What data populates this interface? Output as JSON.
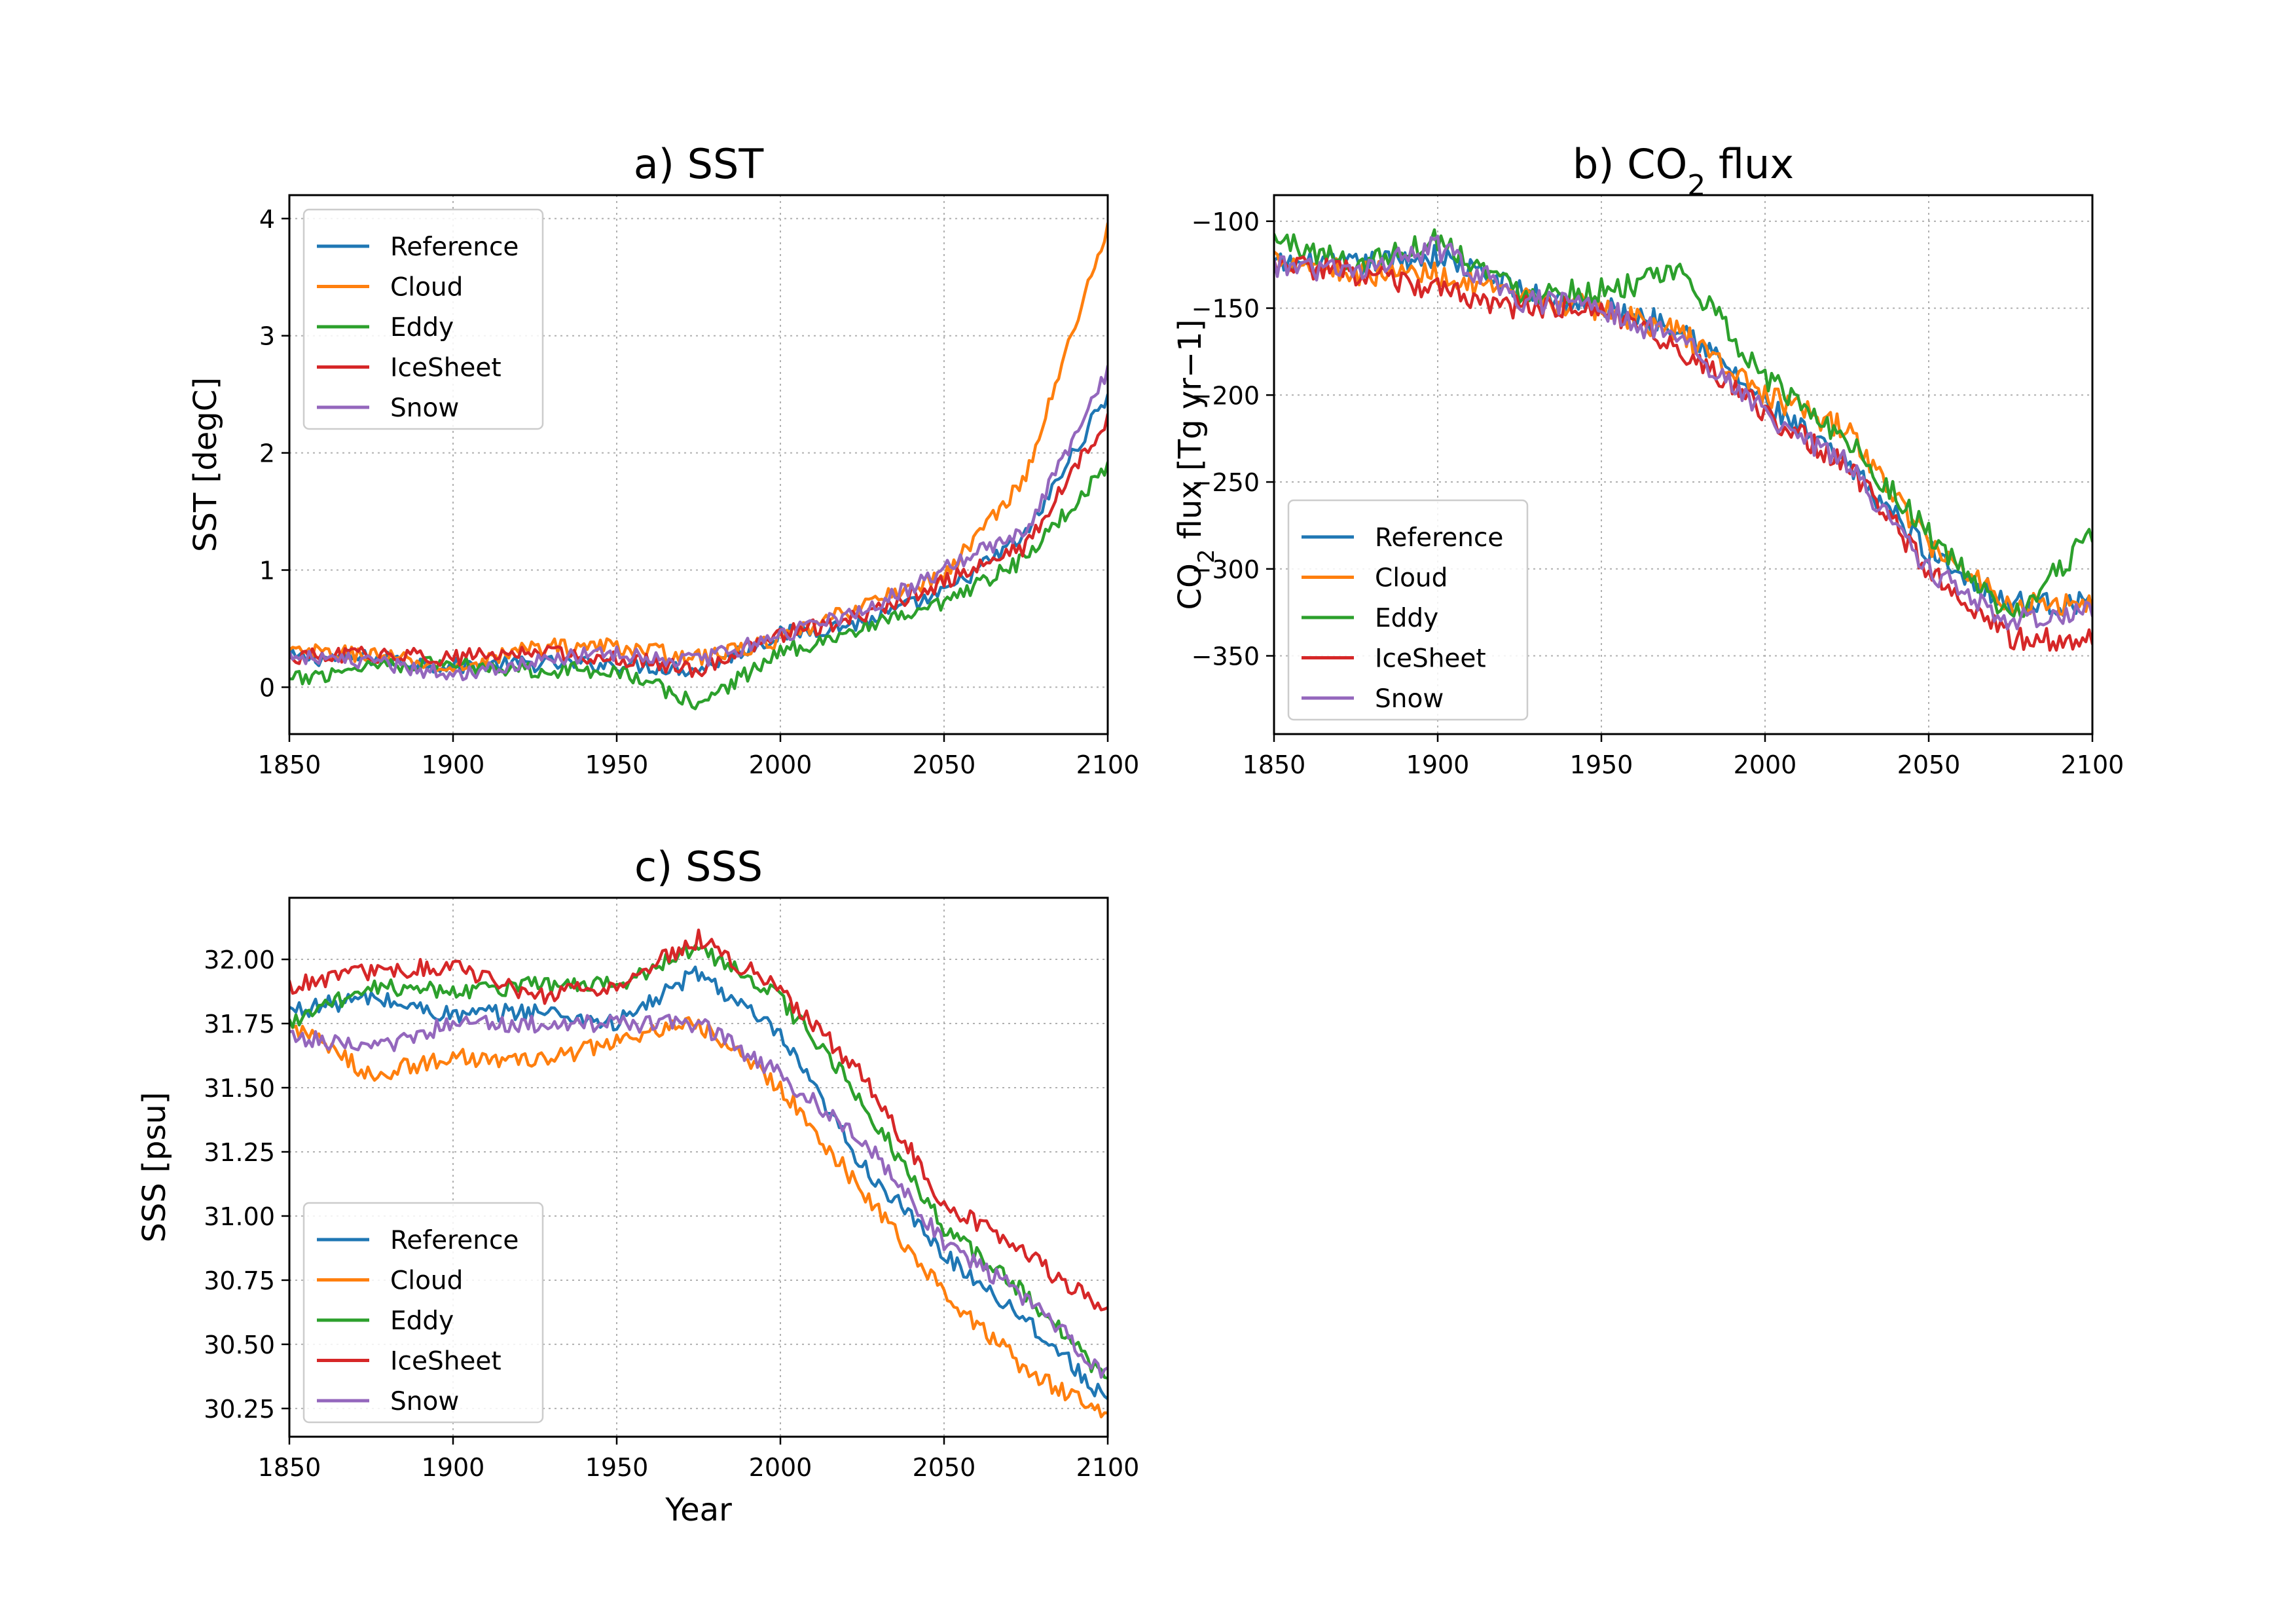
{
  "chart_data": [
    {
      "type": "line",
      "panel": "a",
      "title": "a)  SST",
      "xlabel": "",
      "ylabel": "SST [degC]",
      "xlim": [
        1850,
        2100
      ],
      "ylim": [
        -0.4,
        4.2
      ],
      "xticks": [
        1850,
        1900,
        1950,
        2000,
        2050,
        2100
      ],
      "yticks": [
        0,
        1,
        2,
        3,
        4
      ],
      "ytick_labels": [
        "0",
        "1",
        "2",
        "3",
        "4"
      ],
      "grid": true,
      "legend": "upper-left",
      "x": [
        1850,
        1875,
        1900,
        1925,
        1950,
        1975,
        2000,
        2025,
        2050,
        2075,
        2100
      ],
      "series": [
        {
          "name": "Reference",
          "color": "#1f77b4",
          "values": [
            0.25,
            0.25,
            0.18,
            0.2,
            0.2,
            0.15,
            0.45,
            0.55,
            0.8,
            1.3,
            2.5
          ]
        },
        {
          "name": "Cloud",
          "color": "#ff7f0e",
          "values": [
            0.3,
            0.28,
            0.15,
            0.35,
            0.35,
            0.25,
            0.4,
            0.7,
            0.95,
            1.8,
            3.95
          ]
        },
        {
          "name": "Eddy",
          "color": "#2ca02c",
          "values": [
            0.05,
            0.2,
            0.2,
            0.15,
            0.15,
            -0.15,
            0.3,
            0.5,
            0.7,
            1.1,
            1.9
          ]
        },
        {
          "name": "IceSheet",
          "color": "#d62728",
          "values": [
            0.25,
            0.28,
            0.25,
            0.3,
            0.25,
            0.15,
            0.45,
            0.6,
            0.9,
            1.2,
            2.3
          ]
        },
        {
          "name": "Snow",
          "color": "#9467bd",
          "values": [
            0.28,
            0.2,
            0.12,
            0.22,
            0.3,
            0.22,
            0.45,
            0.65,
            1.0,
            1.35,
            2.7
          ]
        }
      ]
    },
    {
      "type": "line",
      "panel": "b",
      "title_prefix": "b)  CO",
      "title_sub": "2",
      "title_suffix": " flux",
      "xlabel": "",
      "ylabel_prefix": "CO",
      "ylabel_sub": "2",
      "ylabel_suffix": " flux [Tg yr−1]",
      "xlim": [
        1850,
        2100
      ],
      "ylim": [
        -395,
        -85
      ],
      "xticks": [
        1850,
        1900,
        1950,
        2000,
        2050,
        2100
      ],
      "yticks": [
        -100,
        -150,
        -200,
        -250,
        -300,
        -350
      ],
      "ytick_labels": [
        "−100",
        "−150",
        "−200",
        "−250",
        "−300",
        "−350"
      ],
      "grid": true,
      "legend": "lower-left",
      "x": [
        1850,
        1875,
        1900,
        1925,
        1950,
        1975,
        2000,
        2025,
        2050,
        2075,
        2100
      ],
      "series": [
        {
          "name": "Reference",
          "color": "#1f77b4",
          "values": [
            -125,
            -125,
            -120,
            -140,
            -150,
            -160,
            -205,
            -240,
            -290,
            -320,
            -320
          ]
        },
        {
          "name": "Cloud",
          "color": "#ff7f0e",
          "values": [
            -120,
            -130,
            -130,
            -145,
            -150,
            -165,
            -200,
            -220,
            -285,
            -320,
            -320
          ]
        },
        {
          "name": "Eddy",
          "color": "#2ca02c",
          "values": [
            -110,
            -125,
            -110,
            -140,
            -140,
            -130,
            -190,
            -225,
            -280,
            -330,
            -280
          ]
        },
        {
          "name": "IceSheet",
          "color": "#d62728",
          "values": [
            -125,
            -130,
            -140,
            -150,
            -150,
            -175,
            -210,
            -240,
            -300,
            -340,
            -340
          ]
        },
        {
          "name": "Snow",
          "color": "#9467bd",
          "values": [
            -125,
            -130,
            -115,
            -145,
            -150,
            -170,
            -210,
            -240,
            -300,
            -330,
            -325
          ]
        }
      ]
    },
    {
      "type": "line",
      "panel": "c",
      "title": "c)  SSS",
      "xlabel": "Year",
      "ylabel": "SSS [psu]",
      "xlim": [
        1850,
        2100
      ],
      "ylim": [
        30.14,
        32.24
      ],
      "xticks": [
        1850,
        1900,
        1950,
        2000,
        2050,
        2100
      ],
      "yticks": [
        30.25,
        30.5,
        30.75,
        31.0,
        31.25,
        31.5,
        31.75,
        32.0
      ],
      "ytick_labels": [
        "30.25",
        "30.50",
        "30.75",
        "31.00",
        "31.25",
        "31.50",
        "31.75",
        "32.00"
      ],
      "grid": true,
      "legend": "lower-left",
      "x": [
        1850,
        1875,
        1900,
        1925,
        1950,
        1975,
        2000,
        2025,
        2050,
        2075,
        2100
      ],
      "series": [
        {
          "name": "Reference",
          "color": "#1f77b4",
          "values": [
            31.8,
            31.85,
            31.78,
            31.8,
            31.75,
            31.95,
            31.7,
            31.2,
            30.85,
            30.6,
            30.28
          ]
        },
        {
          "name": "Cloud",
          "color": "#ff7f0e",
          "values": [
            31.75,
            31.55,
            31.62,
            31.6,
            31.68,
            31.75,
            31.5,
            31.1,
            30.7,
            30.4,
            30.22
          ]
        },
        {
          "name": "Eddy",
          "color": "#2ca02c",
          "values": [
            31.75,
            31.9,
            31.88,
            31.9,
            31.9,
            32.05,
            31.85,
            31.45,
            30.95,
            30.7,
            30.35
          ]
        },
        {
          "name": "IceSheet",
          "color": "#d62728",
          "values": [
            31.9,
            31.95,
            31.98,
            31.85,
            31.9,
            32.08,
            31.88,
            31.55,
            31.05,
            30.85,
            30.62
          ]
        },
        {
          "name": "Snow",
          "color": "#9467bd",
          "values": [
            31.7,
            31.65,
            31.75,
            31.75,
            31.75,
            31.75,
            31.55,
            31.3,
            30.9,
            30.68,
            30.38
          ]
        }
      ]
    }
  ]
}
